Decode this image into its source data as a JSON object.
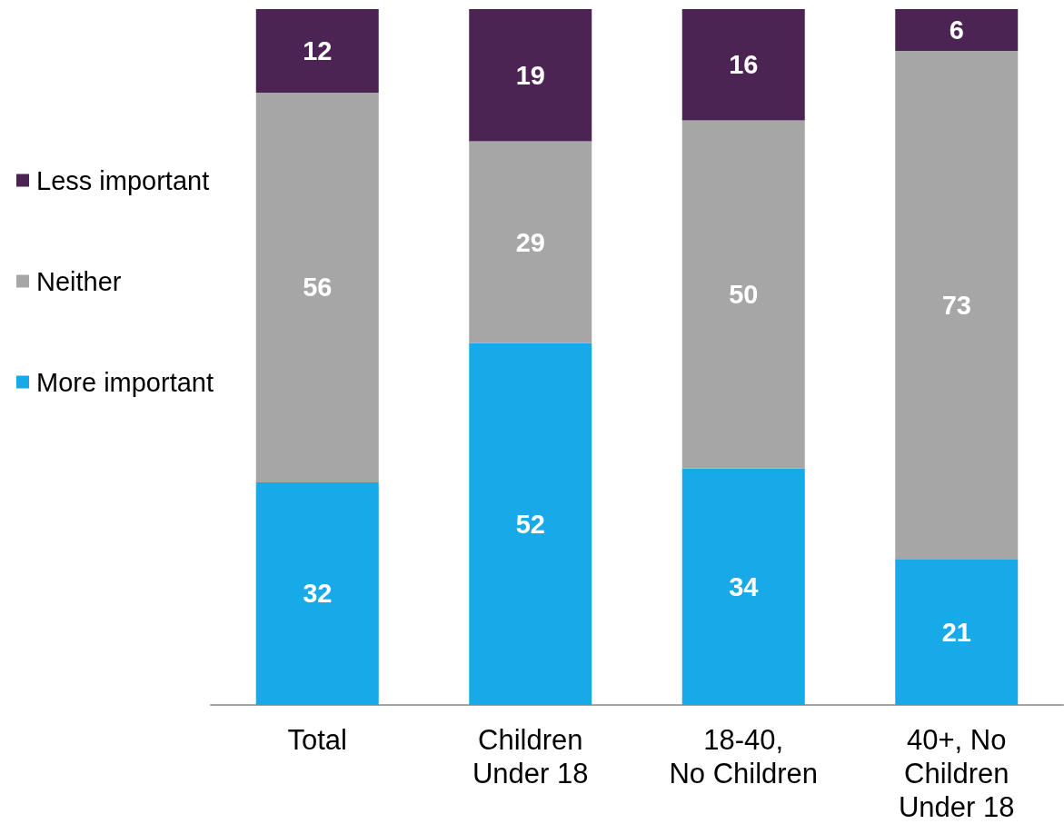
{
  "chart_data": {
    "type": "bar",
    "categories": [
      "Total",
      "Children\nUnder 18",
      "18-40,\nNo Children",
      "40+, No\nChildren\nUnder 18"
    ],
    "series": [
      {
        "name": "More important",
        "color": "#17a9e8",
        "values": [
          32,
          52,
          34,
          21
        ]
      },
      {
        "name": "Neither",
        "color": "#a6a6a6",
        "values": [
          56,
          29,
          50,
          73
        ]
      },
      {
        "name": "Less important",
        "color": "#4b2454",
        "values": [
          12,
          19,
          16,
          6
        ]
      }
    ],
    "stacked": true,
    "ylim": [
      0,
      100
    ],
    "tick_labels": "x",
    "data_labels": true,
    "legend": "left"
  }
}
